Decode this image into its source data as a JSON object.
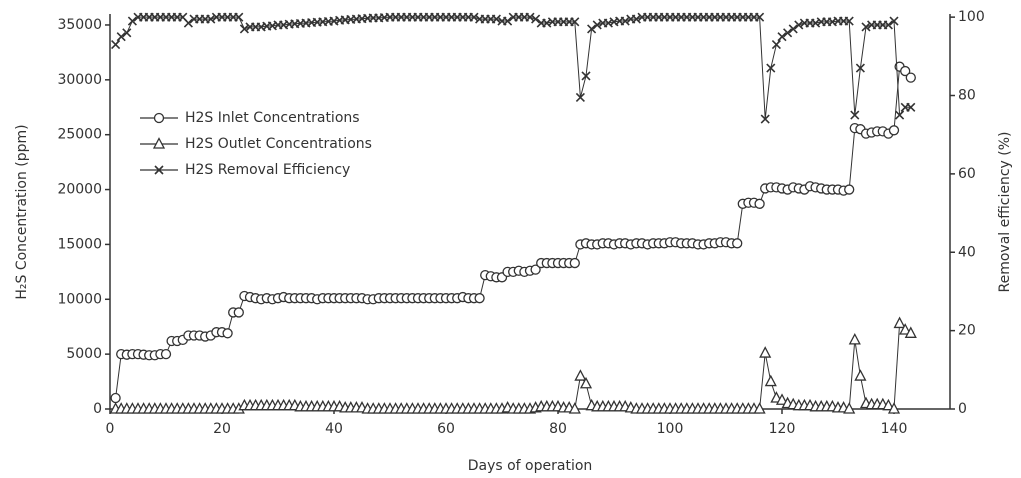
{
  "chart_data": {
    "type": "line",
    "x_label": "Days of operation",
    "y_label": "H₂S Concentration (ppm)",
    "y2_label": "Removal efficiency (%)",
    "xlim": [
      0,
      150
    ],
    "xticks": [
      0,
      20,
      40,
      60,
      80,
      100,
      120,
      140
    ],
    "ylim": [
      0,
      36000
    ],
    "yticks": [
      0,
      5000,
      10000,
      15000,
      20000,
      25000,
      30000,
      35000
    ],
    "y2lim": [
      0,
      100.8
    ],
    "y2ticks": [
      0,
      20,
      40,
      60,
      80,
      100
    ],
    "legend": "upper-left",
    "x": [
      1,
      2,
      3,
      4,
      5,
      6,
      7,
      8,
      9,
      10,
      11,
      12,
      13,
      14,
      15,
      16,
      17,
      18,
      19,
      20,
      21,
      22,
      23,
      24,
      25,
      26,
      27,
      28,
      29,
      30,
      31,
      32,
      33,
      34,
      35,
      36,
      37,
      38,
      39,
      40,
      41,
      42,
      43,
      44,
      45,
      46,
      47,
      48,
      49,
      50,
      51,
      52,
      53,
      54,
      55,
      56,
      57,
      58,
      59,
      60,
      61,
      62,
      63,
      64,
      65,
      66,
      67,
      68,
      69,
      70,
      71,
      72,
      73,
      74,
      75,
      76,
      77,
      78,
      79,
      80,
      81,
      82,
      83,
      84,
      85,
      86,
      87,
      88,
      89,
      90,
      91,
      92,
      93,
      94,
      95,
      96,
      97,
      98,
      99,
      100,
      101,
      102,
      103,
      104,
      105,
      106,
      107,
      108,
      109,
      110,
      111,
      112,
      113,
      114,
      115,
      116,
      117,
      118,
      119,
      120,
      121,
      122,
      123,
      124,
      125,
      126,
      127,
      128,
      129,
      130,
      131,
      132,
      133,
      134,
      135,
      136,
      137,
      138,
      139,
      140,
      141,
      142,
      143
    ],
    "series": [
      {
        "name": "H2S Inlet Concentrations",
        "color": "#333333",
        "marker": "circle",
        "values": [
          1000,
          5000,
          4950,
          5000,
          5000,
          4950,
          4900,
          4900,
          5000,
          5000,
          6200,
          6200,
          6300,
          6700,
          6700,
          6700,
          6600,
          6700,
          7000,
          7000,
          6900,
          8800,
          8800,
          10300,
          10200,
          10100,
          10000,
          10100,
          10000,
          10100,
          10200,
          10100,
          10100,
          10100,
          10100,
          10100,
          10000,
          10100,
          10100,
          10100,
          10100,
          10100,
          10100,
          10100,
          10100,
          10000,
          10000,
          10100,
          10100,
          10100,
          10100,
          10100,
          10100,
          10100,
          10100,
          10100,
          10100,
          10100,
          10100,
          10100,
          10100,
          10100,
          10200,
          10100,
          10100,
          10100,
          12200,
          12100,
          12000,
          12000,
          12500,
          12500,
          12600,
          12500,
          12600,
          12700,
          13300,
          13300,
          13300,
          13300,
          13300,
          13300,
          13300,
          15000,
          15100,
          15000,
          15000,
          15100,
          15100,
          15000,
          15100,
          15100,
          15000,
          15100,
          15100,
          15000,
          15100,
          15100,
          15100,
          15200,
          15200,
          15100,
          15100,
          15100,
          15000,
          15000,
          15100,
          15100,
          15200,
          15200,
          15100,
          15100,
          18700,
          18800,
          18800,
          18700,
          20100,
          20200,
          20200,
          20100,
          20000,
          20200,
          20100,
          20000,
          20300,
          20200,
          20100,
          20000,
          20000,
          20000,
          19900,
          20000,
          25600,
          25500,
          25100,
          25200,
          25300,
          25300,
          25100,
          25400,
          31200,
          30800,
          30200
        ]
      },
      {
        "name": "H2S Outlet Concentrations",
        "color": "#333333",
        "marker": "triangle",
        "values": [
          0,
          0,
          0,
          0,
          0,
          0,
          0,
          0,
          0,
          0,
          0,
          0,
          0,
          0,
          0,
          0,
          0,
          0,
          0,
          0,
          0,
          0,
          0,
          300,
          300,
          300,
          300,
          300,
          300,
          300,
          300,
          300,
          300,
          200,
          200,
          200,
          200,
          200,
          200,
          200,
          200,
          100,
          100,
          100,
          100,
          0,
          0,
          0,
          0,
          0,
          0,
          0,
          0,
          0,
          0,
          0,
          0,
          0,
          0,
          0,
          0,
          0,
          0,
          0,
          0,
          0,
          0,
          0,
          0,
          0,
          100,
          0,
          0,
          0,
          0,
          100,
          200,
          200,
          200,
          200,
          100,
          100,
          0,
          3000,
          2300,
          300,
          200,
          200,
          200,
          200,
          200,
          200,
          100,
          0,
          0,
          0,
          0,
          0,
          0,
          0,
          0,
          0,
          0,
          0,
          0,
          0,
          0,
          0,
          0,
          0,
          0,
          0,
          0,
          0,
          0,
          0,
          5100,
          2500,
          1000,
          800,
          500,
          400,
          300,
          300,
          300,
          200,
          200,
          200,
          200,
          100,
          100,
          0,
          6300,
          3000,
          500,
          400,
          400,
          400,
          300,
          0,
          7800,
          7200,
          6900
        ]
      },
      {
        "name": "H2S Removal Efficiency",
        "color": "#333333",
        "marker": "x",
        "axis": "y2",
        "values": [
          93,
          95,
          96,
          99,
          100,
          100,
          100,
          100,
          100,
          100,
          100,
          100,
          100,
          98.5,
          99.5,
          99.5,
          99.5,
          99.5,
          100,
          100,
          100,
          100,
          100,
          97,
          97.5,
          97.5,
          97.5,
          97.7,
          97.8,
          98,
          98,
          98.2,
          98.3,
          98.4,
          98.5,
          98.6,
          98.7,
          98.8,
          98.9,
          99,
          99.2,
          99.3,
          99.4,
          99.5,
          99.6,
          99.7,
          99.8,
          99.8,
          99.9,
          100,
          100,
          100,
          100,
          100,
          100,
          100,
          100,
          100,
          100,
          100,
          100,
          100,
          100,
          100,
          100,
          99.5,
          99.5,
          99.5,
          99.5,
          99,
          99,
          100,
          100,
          100,
          100,
          99.5,
          98.5,
          98.5,
          98.8,
          98.8,
          98.8,
          98.8,
          98.8,
          79.5,
          85,
          97,
          98,
          98.5,
          98.5,
          98.8,
          99,
          99,
          99.5,
          99.5,
          100,
          100,
          100,
          100,
          100,
          100,
          100,
          100,
          100,
          100,
          100,
          100,
          100,
          100,
          100,
          100,
          100,
          100,
          100,
          100,
          100,
          100,
          74,
          87,
          93,
          95,
          96,
          97,
          98,
          98.5,
          98.5,
          98.5,
          98.8,
          98.8,
          98.8,
          99,
          99,
          99,
          75,
          87,
          97.5,
          98,
          98,
          98,
          98,
          99,
          75,
          77,
          77
        ]
      }
    ]
  }
}
